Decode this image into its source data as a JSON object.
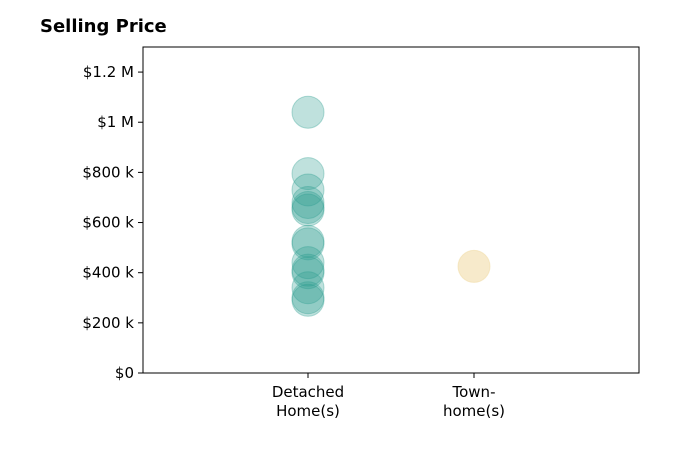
{
  "chart_data": {
    "type": "scatter",
    "title": "Selling Price",
    "xlabel": "",
    "ylabel": "",
    "categories": [
      "Detached Home(s)",
      "Townhome(s)"
    ],
    "category_labels": [
      [
        "Detached",
        "Home(s)"
      ],
      [
        "Town-",
        "home(s)"
      ]
    ],
    "ylim": [
      0,
      1300000
    ],
    "yticks": [
      0,
      200000,
      400000,
      600000,
      800000,
      1000000,
      1200000
    ],
    "ytick_labels": [
      "$0",
      "$200 k",
      "$400 k",
      "$600 k",
      "$800 k",
      "$1 M",
      "$1.2 M"
    ],
    "grid": false,
    "series": [
      {
        "category": "Detached Home(s)",
        "color": "#2a9d8f",
        "values": [
          1040000,
          795000,
          730000,
          680000,
          660000,
          650000,
          525000,
          515000,
          440000,
          410000,
          400000,
          340000,
          300000,
          290000
        ]
      },
      {
        "category": "Townhome(s)",
        "color": "#f0d9a0",
        "values": [
          425000
        ]
      }
    ]
  }
}
